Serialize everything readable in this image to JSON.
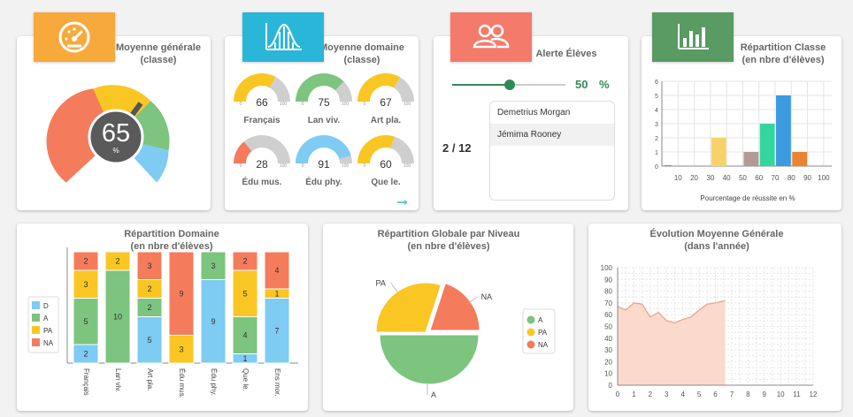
{
  "cards": {
    "moyenne_generale": {
      "title": "Moyenne générale",
      "subtitle": "(classe)",
      "value": "65",
      "unit": "%",
      "accent": "#f7a93b"
    },
    "moyenne_domaine": {
      "title": "Moyenne domaine",
      "subtitle": "(classe)",
      "accent": "#29b6d8",
      "gauges": [
        {
          "label": "Français",
          "value": "66",
          "min": "0",
          "max": "100",
          "color": "#f9c623"
        },
        {
          "label": "Lan viv.",
          "value": "75",
          "min": "0",
          "max": "100",
          "color": "#7dc47f"
        },
        {
          "label": "Art pla.",
          "value": "67",
          "min": "0",
          "max": "100",
          "color": "#f9c623"
        },
        {
          "label": "Édu mus.",
          "value": "28",
          "min": "0",
          "max": "100",
          "color": "#f47c5c"
        },
        {
          "label": "Édu phy.",
          "value": "91",
          "min": "0",
          "max": "100",
          "color": "#7ecbf3"
        },
        {
          "label": "Que le.",
          "value": "60",
          "min": "0",
          "max": "100",
          "color": "#f9c623"
        }
      ]
    },
    "alerte": {
      "title": "Alerte Élèves",
      "accent": "#f47a6c",
      "slider_value": "50",
      "slider_unit": "%",
      "count": "2 / 12",
      "students": [
        "Demetrius Morgan",
        "Jémima Rooney"
      ]
    },
    "repartition_classe": {
      "title": "Répartition Classe",
      "subtitle": "(en nbre d'élèves)",
      "accent": "#5a9a63"
    },
    "repartition_domaine": {
      "title": "Répartition Domaine",
      "subtitle": "(en nbre d'élèves)"
    },
    "repartition_globale": {
      "title": "Répartition Globale par Niveau",
      "subtitle": "(en nbre d'élèves)"
    },
    "evolution": {
      "title": "Évolution Moyenne Générale",
      "subtitle": "(dans l'année)"
    }
  },
  "chart_data": [
    {
      "type": "bar",
      "title": "Répartition Classe",
      "xlabel": "Pourcentage de réussite en %",
      "x_ticks": [
        "10",
        "20",
        "30",
        "40",
        "50",
        "60",
        "70",
        "80",
        "90",
        "100"
      ],
      "y_ticks": [
        "0",
        "1",
        "2",
        "3",
        "4",
        "5",
        "6"
      ],
      "ylim": [
        0,
        6
      ],
      "bars": [
        {
          "x": 0,
          "value": 0.05,
          "color": "#9b6a3a"
        },
        {
          "x": 30,
          "value": 2,
          "color": "#f7d26b"
        },
        {
          "x": 50,
          "value": 1,
          "color": "#b59a92"
        },
        {
          "x": 60,
          "value": 3,
          "color": "#34d6a0"
        },
        {
          "x": 70,
          "value": 5,
          "color": "#3b9bde"
        },
        {
          "x": 80,
          "value": 1,
          "color": "#e9852f"
        }
      ]
    },
    {
      "type": "bar",
      "title": "Répartition Domaine",
      "stacked": true,
      "categories": [
        "Français",
        "Lan viv.",
        "Art pla.",
        "Édu mus.",
        "Édu phy.",
        "Que le.",
        "Ens mor."
      ],
      "series": [
        {
          "name": "D",
          "color": "#7ecbf3",
          "values": [
            2,
            0,
            5,
            0,
            9,
            1,
            7
          ]
        },
        {
          "name": "A",
          "color": "#7dc47f",
          "values": [
            5,
            10,
            2,
            0,
            3,
            4,
            0
          ]
        },
        {
          "name": "PA",
          "color": "#f9c623",
          "values": [
            3,
            2,
            2,
            3,
            0,
            5,
            1
          ]
        },
        {
          "name": "NA",
          "color": "#f47c5c",
          "values": [
            2,
            0,
            3,
            9,
            0,
            2,
            4
          ]
        }
      ]
    },
    {
      "type": "pie",
      "title": "Répartition Globale par Niveau",
      "slices": [
        {
          "name": "A",
          "value": 50,
          "color": "#7dc47f"
        },
        {
          "name": "PA",
          "value": 30,
          "color": "#f9c623"
        },
        {
          "name": "NA",
          "value": 20,
          "color": "#f47c5c"
        }
      ]
    },
    {
      "type": "area",
      "title": "Évolution Moyenne Générale",
      "x_ticks": [
        "0",
        "1",
        "2",
        "3",
        "4",
        "5",
        "6",
        "7",
        "8",
        "9",
        "10",
        "11",
        "12"
      ],
      "y_ticks": [
        "0",
        "10",
        "20",
        "30",
        "40",
        "50",
        "60",
        "70",
        "80",
        "90",
        "100"
      ],
      "xlim": [
        0,
        12
      ],
      "ylim": [
        0,
        100
      ],
      "x": [
        0,
        0.5,
        1,
        1.5,
        2,
        2.5,
        3,
        3.5,
        4,
        4.5,
        5,
        5.5,
        6,
        6.6
      ],
      "y": [
        67,
        64,
        70,
        69,
        58,
        62,
        55,
        53,
        56,
        58,
        64,
        69,
        70,
        72
      ],
      "color": "#f6a98f"
    }
  ]
}
